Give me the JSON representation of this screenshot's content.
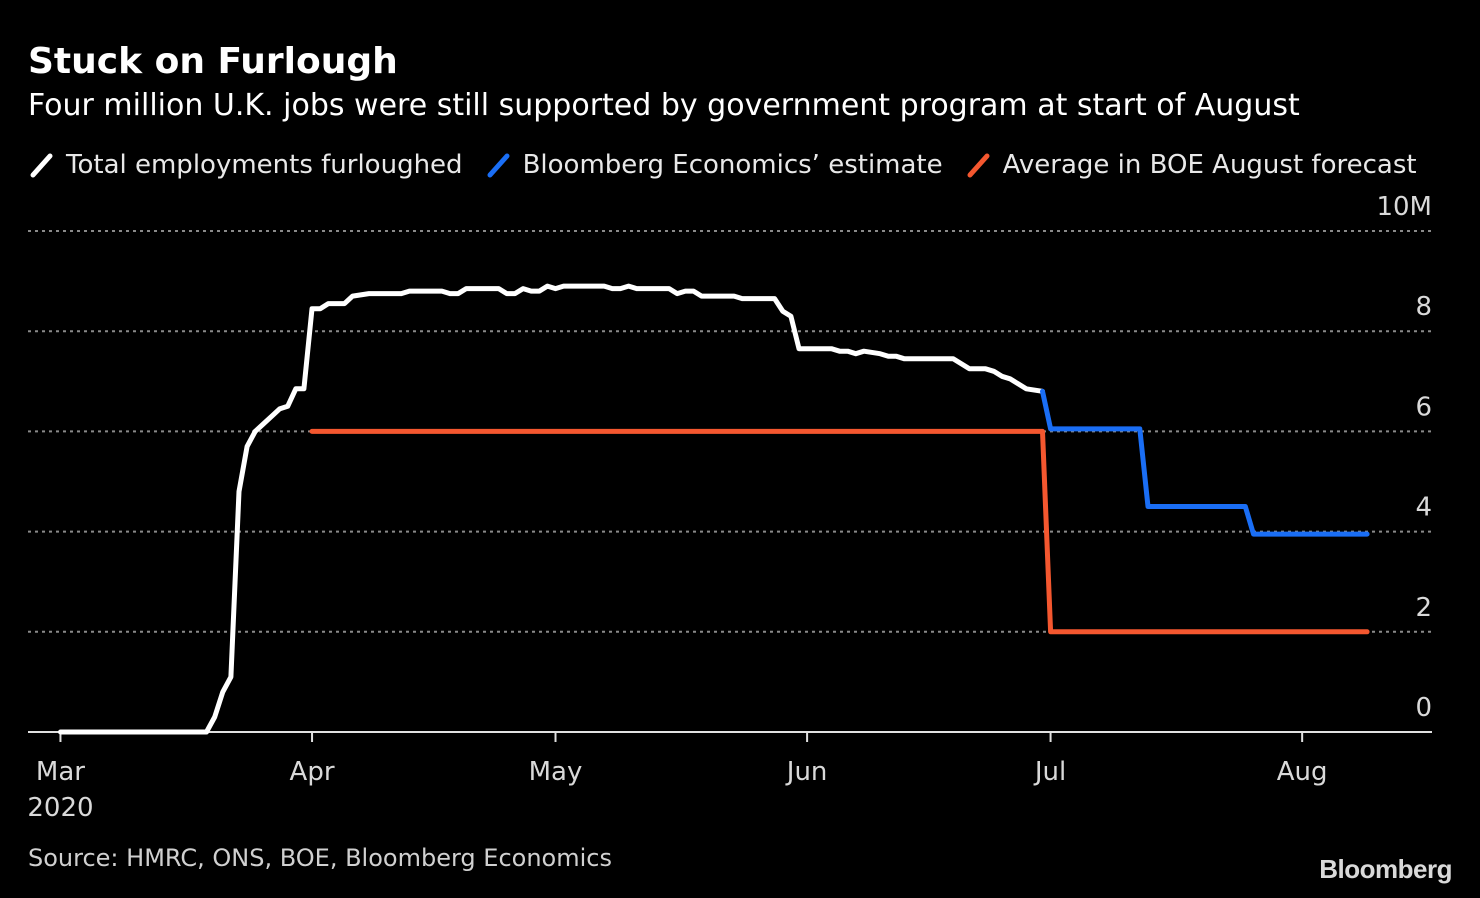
{
  "header": {
    "title": "Stuck on Furlough",
    "subtitle": "Four million U.K. jobs were still supported by government program at start of August"
  },
  "legend": [
    {
      "label": "Total employments furloughed",
      "color": "#ffffff"
    },
    {
      "label": "Bloomberg Economics’ estimate",
      "color": "#1a6ef5"
    },
    {
      "label": "Average in BOE August forecast",
      "color": "#f4572f"
    }
  ],
  "footer": {
    "source": "Source: HMRC, ONS, BOE, Bloomberg Economics",
    "brand": "Bloomberg"
  },
  "chart_data": {
    "type": "line",
    "title": "Stuck on Furlough",
    "subtitle": "Four million U.K. jobs were still supported by government program at start of August",
    "x_axis": {
      "ticks": [
        {
          "date": "2020-03-01",
          "label": "Mar",
          "sublabel": "2020"
        },
        {
          "date": "2020-04-01",
          "label": "Apr",
          "sublabel": ""
        },
        {
          "date": "2020-05-01",
          "label": "May",
          "sublabel": ""
        },
        {
          "date": "2020-06-01",
          "label": "Jun",
          "sublabel": ""
        },
        {
          "date": "2020-07-01",
          "label": "Jul",
          "sublabel": ""
        },
        {
          "date": "2020-08-01",
          "label": "Aug",
          "sublabel": ""
        }
      ],
      "range": [
        "2020-02-26",
        "2020-08-17"
      ]
    },
    "y_axis": {
      "range": [
        0,
        10
      ],
      "unit": "M",
      "ticks": [
        {
          "value": 0,
          "label": "0"
        },
        {
          "value": 2,
          "label": "2"
        },
        {
          "value": 4,
          "label": "4"
        },
        {
          "value": 6,
          "label": "6"
        },
        {
          "value": 8,
          "label": "8"
        },
        {
          "value": 10,
          "label": "10M"
        }
      ],
      "position": "right",
      "grid": "dotted"
    },
    "series": [
      {
        "name": "Total employments furloughed",
        "color": "#ffffff",
        "points": [
          [
            "2020-03-01",
            0.0
          ],
          [
            "2020-03-19",
            0.0
          ],
          [
            "2020-03-20",
            0.3
          ],
          [
            "2020-03-21",
            0.8
          ],
          [
            "2020-03-22",
            1.1
          ],
          [
            "2020-03-23",
            4.8
          ],
          [
            "2020-03-24",
            5.7
          ],
          [
            "2020-03-25",
            6.0
          ],
          [
            "2020-03-26",
            6.15
          ],
          [
            "2020-03-27",
            6.3
          ],
          [
            "2020-03-28",
            6.45
          ],
          [
            "2020-03-29",
            6.5
          ],
          [
            "2020-03-30",
            6.85
          ],
          [
            "2020-03-31",
            6.85
          ],
          [
            "2020-04-01",
            8.45
          ],
          [
            "2020-04-02",
            8.45
          ],
          [
            "2020-04-03",
            8.55
          ],
          [
            "2020-04-05",
            8.55
          ],
          [
            "2020-04-06",
            8.7
          ],
          [
            "2020-04-08",
            8.75
          ],
          [
            "2020-04-12",
            8.75
          ],
          [
            "2020-04-13",
            8.8
          ],
          [
            "2020-04-17",
            8.8
          ],
          [
            "2020-04-18",
            8.75
          ],
          [
            "2020-04-19",
            8.75
          ],
          [
            "2020-04-20",
            8.85
          ],
          [
            "2020-04-24",
            8.85
          ],
          [
            "2020-04-25",
            8.75
          ],
          [
            "2020-04-26",
            8.75
          ],
          [
            "2020-04-27",
            8.85
          ],
          [
            "2020-04-28",
            8.8
          ],
          [
            "2020-04-29",
            8.8
          ],
          [
            "2020-04-30",
            8.9
          ],
          [
            "2020-05-01",
            8.85
          ],
          [
            "2020-05-02",
            8.9
          ],
          [
            "2020-05-07",
            8.9
          ],
          [
            "2020-05-08",
            8.85
          ],
          [
            "2020-05-09",
            8.85
          ],
          [
            "2020-05-10",
            8.9
          ],
          [
            "2020-05-11",
            8.85
          ],
          [
            "2020-05-15",
            8.85
          ],
          [
            "2020-05-16",
            8.75
          ],
          [
            "2020-05-17",
            8.8
          ],
          [
            "2020-05-18",
            8.8
          ],
          [
            "2020-05-19",
            8.7
          ],
          [
            "2020-05-23",
            8.7
          ],
          [
            "2020-05-24",
            8.65
          ],
          [
            "2020-05-28",
            8.65
          ],
          [
            "2020-05-29",
            8.4
          ],
          [
            "2020-05-30",
            8.3
          ],
          [
            "2020-05-31",
            7.65
          ],
          [
            "2020-06-04",
            7.65
          ],
          [
            "2020-06-05",
            7.6
          ],
          [
            "2020-06-06",
            7.6
          ],
          [
            "2020-06-07",
            7.55
          ],
          [
            "2020-06-08",
            7.6
          ],
          [
            "2020-06-10",
            7.55
          ],
          [
            "2020-06-11",
            7.5
          ],
          [
            "2020-06-12",
            7.5
          ],
          [
            "2020-06-13",
            7.45
          ],
          [
            "2020-06-15",
            7.45
          ],
          [
            "2020-06-19",
            7.45
          ],
          [
            "2020-06-20",
            7.35
          ],
          [
            "2020-06-21",
            7.25
          ],
          [
            "2020-06-23",
            7.25
          ],
          [
            "2020-06-24",
            7.2
          ],
          [
            "2020-06-25",
            7.1
          ],
          [
            "2020-06-26",
            7.05
          ],
          [
            "2020-06-27",
            6.95
          ],
          [
            "2020-06-28",
            6.85
          ],
          [
            "2020-06-30",
            6.8
          ]
        ]
      },
      {
        "name": "Bloomberg Economics’ estimate",
        "color": "#1a6ef5",
        "points": [
          [
            "2020-06-30",
            6.8
          ],
          [
            "2020-07-01",
            6.05
          ],
          [
            "2020-07-12",
            6.05
          ],
          [
            "2020-07-13",
            4.5
          ],
          [
            "2020-07-25",
            4.5
          ],
          [
            "2020-07-26",
            3.95
          ],
          [
            "2020-08-09",
            3.95
          ]
        ]
      },
      {
        "name": "Average in BOE August forecast",
        "color": "#f4572f",
        "points": [
          [
            "2020-04-01",
            6.0
          ],
          [
            "2020-06-30",
            6.0
          ],
          [
            "2020-07-01",
            2.0
          ],
          [
            "2020-08-09",
            2.0
          ]
        ]
      }
    ],
    "grid": true,
    "legend_position": "top-left"
  }
}
